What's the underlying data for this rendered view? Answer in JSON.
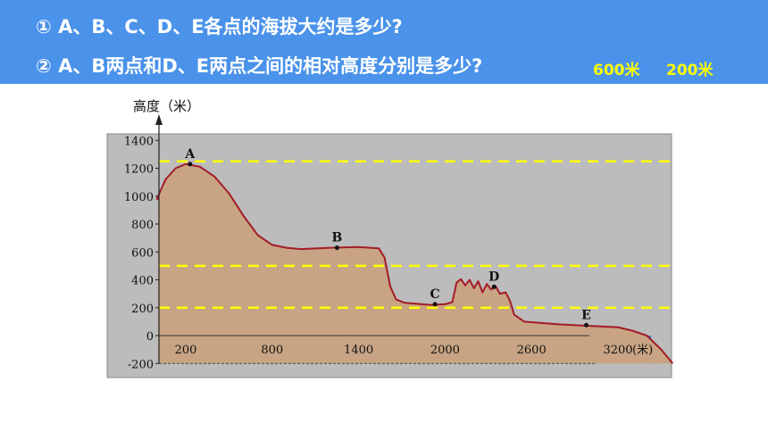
{
  "slide": {
    "question1": "① A、B、C、D、E各点的海拔大约是多少?",
    "question2": "② A、B两点和D、E两点之间的相对高度分别是多少?",
    "answer1": "600米",
    "answer2": "200米"
  },
  "colors": {
    "banner": "#4a92ea",
    "sky": "#bcbcbc",
    "land": "#c8a484",
    "profile": "#a31c28",
    "guide": "#ffff00",
    "sea": "#1f7fc2"
  },
  "chart_data": {
    "type": "area",
    "title": "",
    "ylabel": "高度（米）",
    "xlabel": "(米)",
    "xlim": [
      0,
      3800
    ],
    "ylim": [
      -200,
      1400
    ],
    "y_ticks": [
      1400,
      1200,
      1000,
      800,
      600,
      400,
      200,
      0,
      -200
    ],
    "x_ticks": [
      200,
      800,
      1400,
      2000,
      2600,
      3200
    ],
    "x_tick_labels": [
      "200",
      "800",
      "1400",
      "2000",
      "2600",
      "3200"
    ],
    "guide_lines": [
      1250,
      500,
      200
    ],
    "profile": [
      [
        0,
        980
      ],
      [
        60,
        1120
      ],
      [
        130,
        1200
      ],
      [
        200,
        1230
      ],
      [
        300,
        1210
      ],
      [
        400,
        1140
      ],
      [
        500,
        1020
      ],
      [
        600,
        860
      ],
      [
        700,
        720
      ],
      [
        800,
        650
      ],
      [
        900,
        630
      ],
      [
        1000,
        620
      ],
      [
        1200,
        630
      ],
      [
        1400,
        635
      ],
      [
        1540,
        625
      ],
      [
        1580,
        560
      ],
      [
        1620,
        350
      ],
      [
        1660,
        260
      ],
      [
        1720,
        235
      ],
      [
        1900,
        220
      ],
      [
        2000,
        225
      ],
      [
        2050,
        240
      ],
      [
        2080,
        380
      ],
      [
        2110,
        405
      ],
      [
        2140,
        360
      ],
      [
        2170,
        400
      ],
      [
        2200,
        340
      ],
      [
        2230,
        390
      ],
      [
        2260,
        310
      ],
      [
        2290,
        370
      ],
      [
        2320,
        330
      ],
      [
        2350,
        355
      ],
      [
        2380,
        300
      ],
      [
        2420,
        310
      ],
      [
        2450,
        250
      ],
      [
        2480,
        150
      ],
      [
        2550,
        100
      ],
      [
        2800,
        80
      ],
      [
        3000,
        70
      ],
      [
        3200,
        60
      ],
      [
        3300,
        35
      ],
      [
        3400,
        0
      ],
      [
        3500,
        -100
      ],
      [
        3580,
        -200
      ]
    ],
    "points": [
      {
        "label": "A",
        "x": 230,
        "y": 1230
      },
      {
        "label": "B",
        "x": 1250,
        "y": 630
      },
      {
        "label": "C",
        "x": 1930,
        "y": 225
      },
      {
        "label": "D",
        "x": 2340,
        "y": 350
      },
      {
        "label": "E",
        "x": 2980,
        "y": 75
      }
    ],
    "sea": {
      "x_start": 3400,
      "x_end": 3800,
      "y_top": 0,
      "y_bottom": -200
    }
  }
}
